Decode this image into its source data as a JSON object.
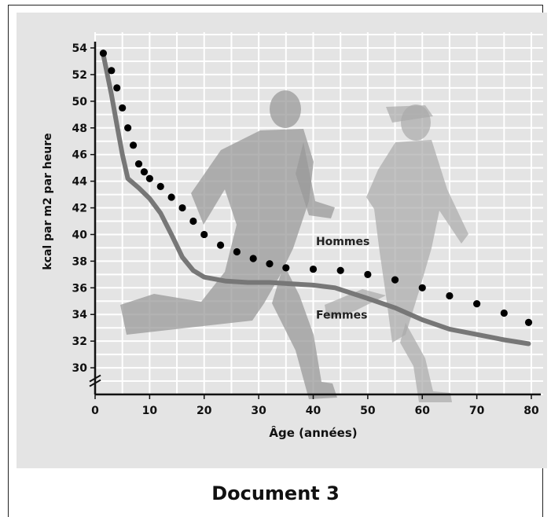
{
  "caption": "Document 3",
  "chart_data": {
    "type": "line",
    "xlabel": "Âge (années)",
    "ylabel": "kcal par m2 par heure",
    "xlim": [
      0,
      80
    ],
    "ylim": [
      28,
      54
    ],
    "x_ticks": [
      0,
      10,
      20,
      30,
      40,
      50,
      60,
      70,
      80
    ],
    "y_ticks": [
      30,
      32,
      34,
      36,
      38,
      40,
      42,
      44,
      46,
      48,
      50,
      52,
      54
    ],
    "grid": true,
    "axis_break": true,
    "series": [
      {
        "name": "Hommes",
        "style": "dotted",
        "color": "#000000",
        "x": [
          1.5,
          3,
          4,
          5,
          6,
          7,
          8,
          9,
          10,
          12,
          14,
          16,
          18,
          20,
          23,
          26,
          29,
          32,
          35,
          40,
          45,
          50,
          55,
          60,
          65,
          70,
          75,
          79.5
        ],
        "y": [
          53.6,
          52.3,
          51,
          49.5,
          48,
          46.7,
          45.3,
          44.7,
          44.2,
          43.6,
          42.8,
          42,
          41,
          40,
          39.2,
          38.7,
          38.2,
          37.8,
          37.5,
          37.4,
          37.3,
          37,
          36.6,
          36,
          35.4,
          34.8,
          34.1,
          33.4
        ]
      },
      {
        "name": "Femmes",
        "style": "solid",
        "color": "#777777",
        "x": [
          1.5,
          3,
          4,
          5,
          6,
          8,
          10,
          12,
          14,
          16,
          18,
          20,
          24,
          28,
          32,
          36,
          40,
          44,
          50,
          55,
          60,
          65,
          70,
          75,
          79.5
        ],
        "y": [
          53.5,
          50.5,
          48.2,
          46,
          44.2,
          43.5,
          42.7,
          41.6,
          40,
          38.3,
          37.3,
          36.8,
          36.5,
          36.4,
          36.4,
          36.3,
          36.2,
          36,
          35.2,
          34.5,
          33.6,
          32.9,
          32.5,
          32.1,
          31.8
        ]
      }
    ],
    "annotations": [
      {
        "text": "Hommes",
        "x": 40.5,
        "y": 39.2
      },
      {
        "text": "Femmes",
        "x": 40.5,
        "y": 33.7
      }
    ],
    "colors": {
      "background": "#e4e4e4",
      "grid": "#ffffff",
      "silhouette": "#9a9a9a",
      "axis": "#111111"
    }
  }
}
